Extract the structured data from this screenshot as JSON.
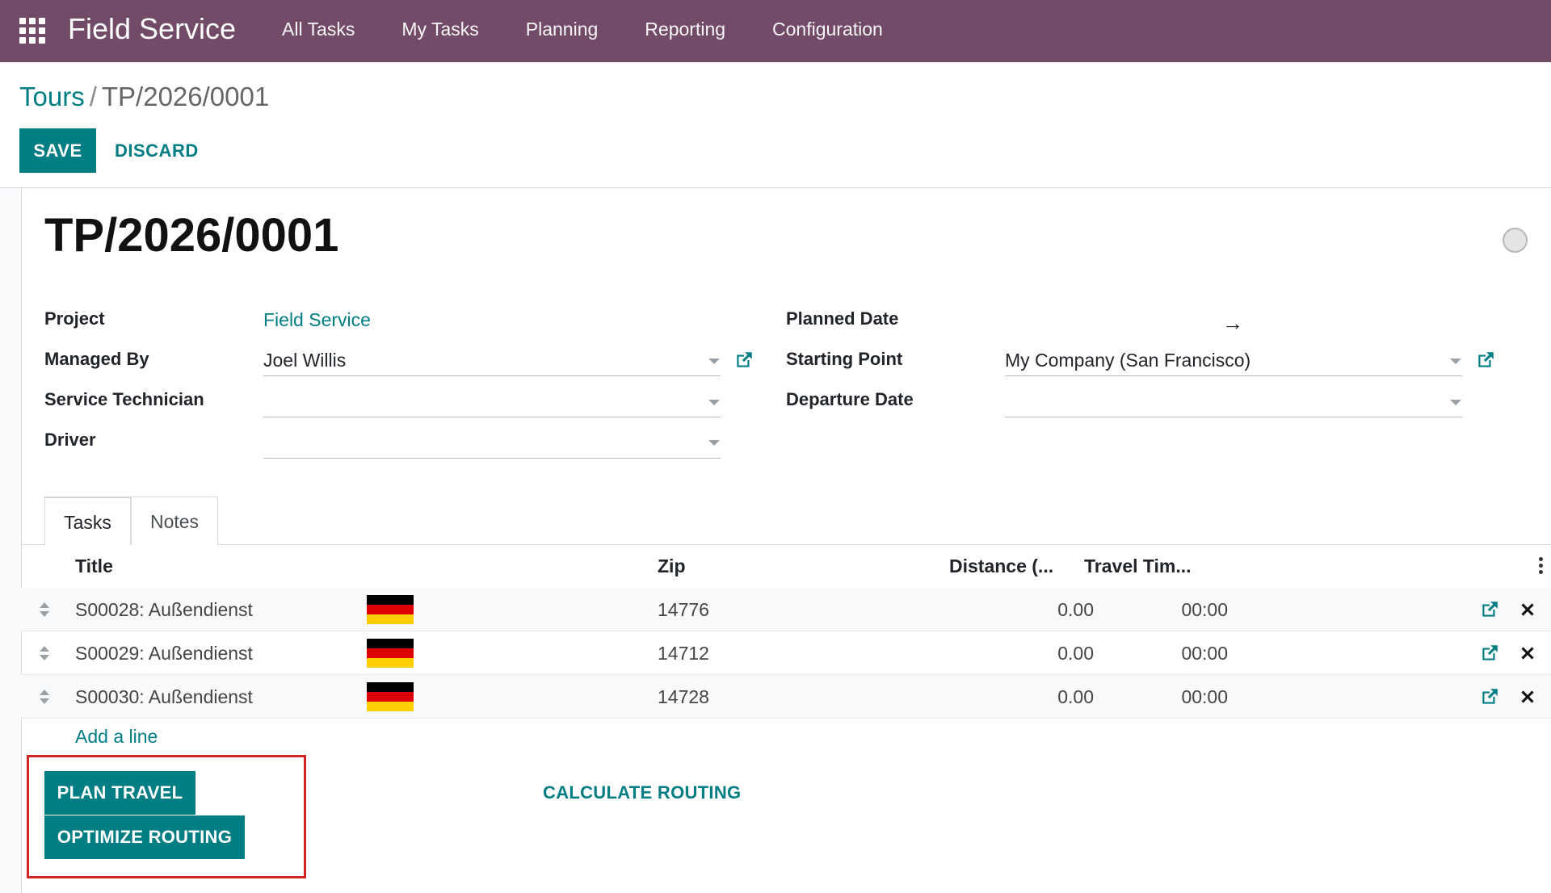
{
  "navbar": {
    "app_name": "Field Service",
    "menu": [
      "All Tasks",
      "My Tasks",
      "Planning",
      "Reporting",
      "Configuration"
    ],
    "color": "#714b67"
  },
  "breadcrumb": {
    "parent": "Tours",
    "separator": "/",
    "current": "TP/2026/0001"
  },
  "controls": {
    "save_label": "SAVE",
    "discard_label": "DISCARD"
  },
  "record": {
    "title": "TP/2026/0001",
    "fields": {
      "project_label": "Project",
      "project_value": "Field Service",
      "managed_by_label": "Managed By",
      "managed_by_value": "Joel Willis",
      "service_technician_label": "Service Technician",
      "service_technician_value": "",
      "driver_label": "Driver",
      "driver_value": "",
      "planned_date_label": "Planned Date",
      "planned_date_arrow": "→",
      "starting_point_label": "Starting Point",
      "starting_point_value": "My Company (San Francisco)",
      "departure_date_label": "Departure Date",
      "departure_date_value": ""
    }
  },
  "tabs": [
    {
      "label": "Tasks",
      "active": true
    },
    {
      "label": "Notes",
      "active": false
    }
  ],
  "table": {
    "columns": [
      "Title",
      "Zip",
      "Distance (...",
      "Travel Tim..."
    ],
    "rows": [
      {
        "title": "S00028: Außendienst",
        "flag": "germany-flag-icon",
        "zip": "14776",
        "distance": "0.00",
        "travel_time": "00:00"
      },
      {
        "title": "S00029: Außendienst",
        "flag": "germany-flag-icon",
        "zip": "14712",
        "distance": "0.00",
        "travel_time": "00:00"
      },
      {
        "title": "S00030: Außendienst",
        "flag": "germany-flag-icon",
        "zip": "14728",
        "distance": "0.00",
        "travel_time": "00:00"
      }
    ],
    "add_line_label": "Add a line"
  },
  "actions": {
    "plan_travel_label": "PLAN TRAVEL",
    "optimize_routing_label": "OPTIMIZE ROUTING",
    "calculate_routing_label": "CALCULATE ROUTING"
  },
  "colors": {
    "primary": "#017e84",
    "highlight": "#d42525"
  }
}
